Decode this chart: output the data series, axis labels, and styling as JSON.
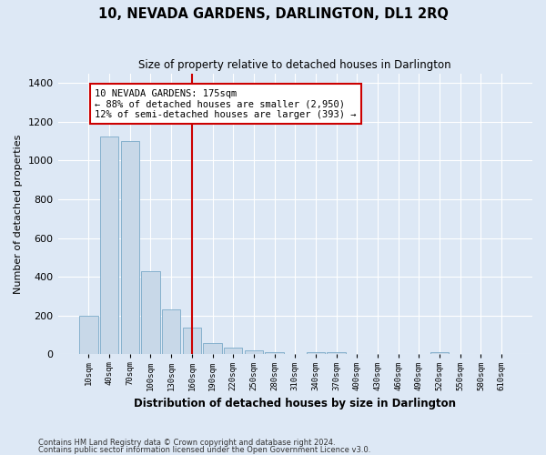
{
  "title": "10, NEVADA GARDENS, DARLINGTON, DL1 2RQ",
  "subtitle": "Size of property relative to detached houses in Darlington",
  "xlabel": "Distribution of detached houses by size in Darlington",
  "ylabel": "Number of detached properties",
  "bar_color": "#c8d8e8",
  "bar_edge_color": "#7aaac8",
  "background_color": "#dde8f5",
  "fig_background_color": "#dde8f5",
  "grid_color": "#ffffff",
  "categories": [
    "10sqm",
    "40sqm",
    "70sqm",
    "100sqm",
    "130sqm",
    "160sqm",
    "190sqm",
    "220sqm",
    "250sqm",
    "280sqm",
    "310sqm",
    "340sqm",
    "370sqm",
    "400sqm",
    "430sqm",
    "460sqm",
    "490sqm",
    "520sqm",
    "550sqm",
    "580sqm",
    "610sqm"
  ],
  "values": [
    200,
    1125,
    1100,
    430,
    230,
    140,
    60,
    35,
    20,
    12,
    0,
    12,
    12,
    0,
    0,
    0,
    0,
    12,
    0,
    0,
    0
  ],
  "ylim": [
    0,
    1450
  ],
  "yticks": [
    0,
    200,
    400,
    600,
    800,
    1000,
    1200,
    1400
  ],
  "property_line_x": 5.0,
  "annotation_text": "10 NEVADA GARDENS: 175sqm\n← 88% of detached houses are smaller (2,950)\n12% of semi-detached houses are larger (393) →",
  "annotation_box_color": "#ffffff",
  "annotation_edge_color": "#cc0000",
  "property_line_color": "#cc0000",
  "footnote1": "Contains HM Land Registry data © Crown copyright and database right 2024.",
  "footnote2": "Contains public sector information licensed under the Open Government Licence v3.0."
}
